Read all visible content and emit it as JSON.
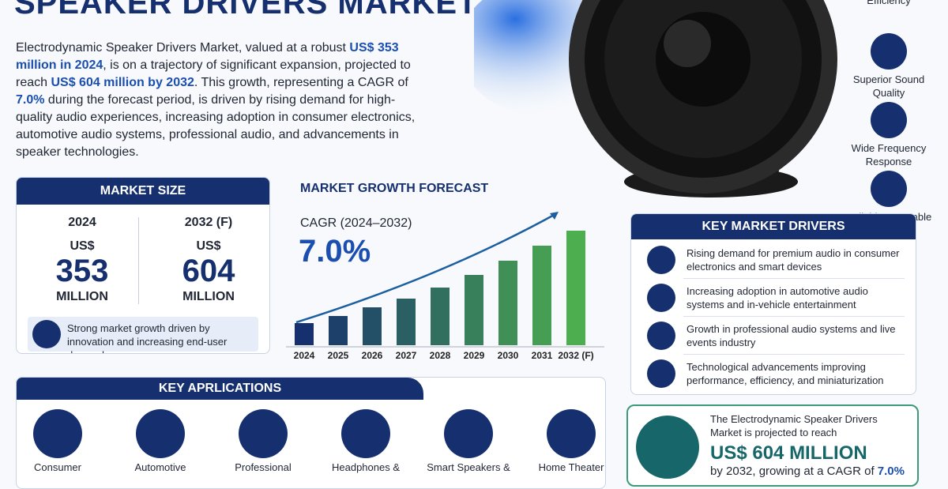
{
  "header": {
    "title": "SPEAKER DRIVERS MARKET"
  },
  "intro": [
    {
      "text": "Electrodynamic Speaker Drivers Market, valued at a robust ",
      "highlight": false
    },
    {
      "text": "US$ 353 million in 2024",
      "highlight": true
    },
    {
      "text": ", is on a trajectory of significant expansion, projected to reach ",
      "highlight": false
    },
    {
      "text": "US$ 604 million by 2032",
      "highlight": true
    },
    {
      "text": ". This growth, representing a CAGR of ",
      "highlight": false
    },
    {
      "text": "7.0%",
      "highlight": true
    },
    {
      "text": " during the forecast period, is driven by rising demand for high-quality audio experiences, increasing adoption in consumer electronics, automotive audio systems, professional audio, and advancements in speaker technologies.",
      "highlight": false
    }
  ],
  "features": [
    "Efficiency",
    "Superior Sound Quality",
    "Wide Frequency Response",
    "Reliable & Durable"
  ],
  "market_size": {
    "title": "MARKET SIZE",
    "columns": [
      {
        "year": "2024",
        "prefix": "US$",
        "value": "353",
        "unit": "MILLION"
      },
      {
        "year": "2032 (F)",
        "prefix": "US$",
        "value": "604",
        "unit": "MILLION"
      }
    ],
    "note": "Strong market growth driven by innovation and increasing end-user demand."
  },
  "forecast": {
    "title": "MARKET GROWTH FORECAST",
    "cagr_label": "CAGR (2024–2032)",
    "cagr_value": "7.0%",
    "chart_data": {
      "type": "bar",
      "categories": [
        "2024",
        "2025",
        "2026",
        "2027",
        "2028",
        "2029",
        "2030",
        "2031",
        "2032 (F)"
      ],
      "values": [
        28,
        37,
        48,
        59,
        73,
        89,
        107,
        126,
        145
      ],
      "colors": [
        "#16306f",
        "#4cae4f"
      ]
    }
  },
  "drivers": {
    "title": "KEY MARKET DRIVERS",
    "items": [
      "Rising demand for premium audio in consumer electronics and smart devices",
      "Increasing adoption in automotive audio systems and in-vehicle entertainment",
      "Growth in professional audio systems and live events industry",
      "Technological advancements improving performance, efficiency, and miniaturization"
    ]
  },
  "applications": {
    "title": "KEY APRLICATIONS",
    "items": [
      "Consumer",
      "Automotive",
      "Professional",
      "Headphones &",
      "Smart Speakers &",
      "Home Theater"
    ]
  },
  "callout": {
    "text": "The Electrodynamic Speaker Drivers Market is projected to reach",
    "highlight": "US$ 604 MILLION",
    "tail": "by 2032, growing at a CAGR of",
    "tail_value": "7.0%"
  }
}
